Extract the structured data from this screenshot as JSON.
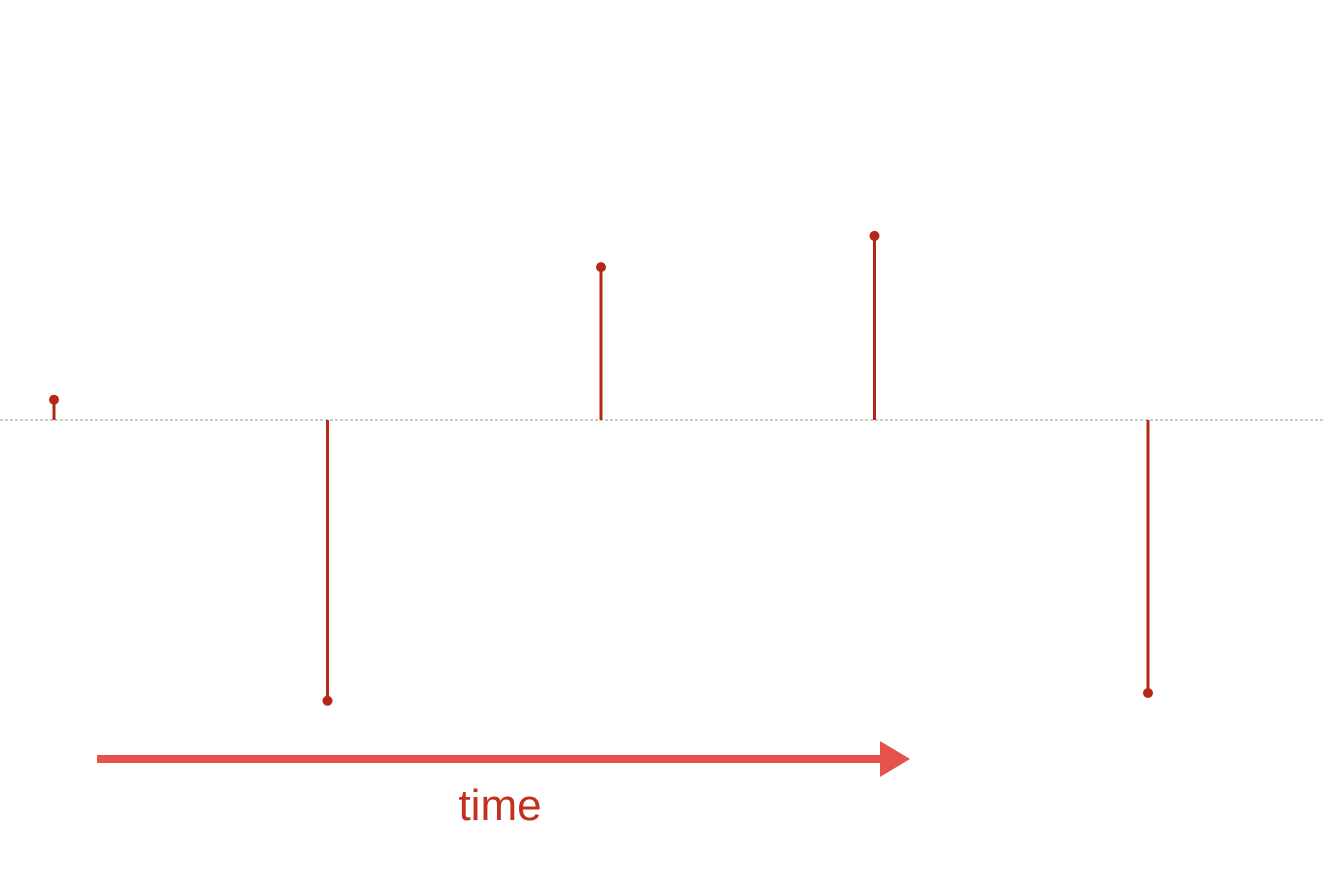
{
  "chart_data": {
    "type": "stem",
    "x": [
      1,
      2,
      3,
      4,
      5
    ],
    "values": [
      0.13,
      -1.8,
      0.98,
      1.18,
      -1.75
    ],
    "ylim": [
      -2.15,
      2.7
    ],
    "baseline": 0,
    "baseline_style": "dashed",
    "grid": false,
    "legend": "none",
    "arrow_label": "time",
    "colors": {
      "stem": "#b52818",
      "arrow": "#e5524b",
      "label": "#c0311f",
      "baseline": "#9a9a9a"
    }
  }
}
